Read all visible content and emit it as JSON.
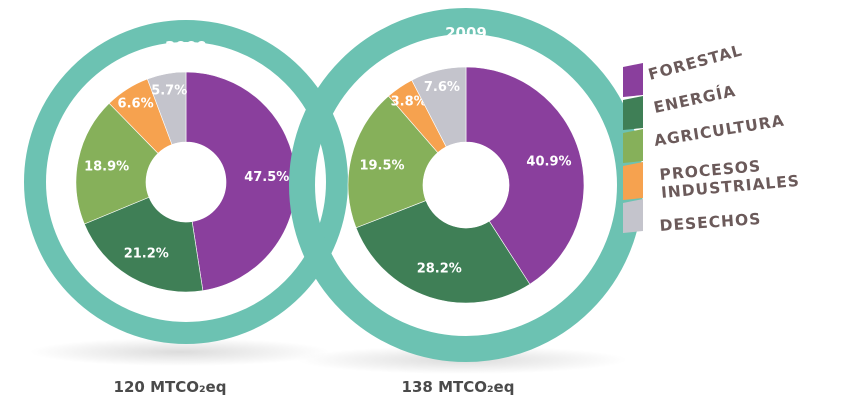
{
  "chart_data": {
    "type": "pie",
    "categories": [
      "FORESTAL",
      "ENERGÍA",
      "AGRICULTURA",
      "PROCESOS INDUSTRIALES",
      "DESECHOS"
    ],
    "colors": [
      "#8a3f9d",
      "#3f7f56",
      "#86b05a",
      "#f6a24f",
      "#c4c4cc"
    ],
    "ring_color": "#6cc2b2",
    "charts": [
      {
        "year": "2000",
        "total_label": "120 MTCO₂eq",
        "values": [
          47.5,
          21.2,
          18.9,
          6.6,
          5.7
        ],
        "labels": [
          "47.5%",
          "21.2%",
          "18.9%",
          "6.6%",
          "5.7%"
        ]
      },
      {
        "year": "2009",
        "total_label": "138 MTCO₂eq",
        "values": [
          40.9,
          28.2,
          19.5,
          3.8,
          7.6
        ],
        "labels": [
          "40.9%",
          "28.2%",
          "19.5%",
          "3.8%",
          "7.6%"
        ]
      }
    ],
    "legend": {
      "entries": [
        {
          "lines": [
            "FORESTAL"
          ]
        },
        {
          "lines": [
            "ENERGÍA"
          ]
        },
        {
          "lines": [
            "AGRICULTURA"
          ]
        },
        {
          "lines": [
            "PROCESOS",
            "INDUSTRIALES"
          ]
        },
        {
          "lines": [
            "DESECHOS"
          ]
        }
      ],
      "placement": "right"
    }
  }
}
